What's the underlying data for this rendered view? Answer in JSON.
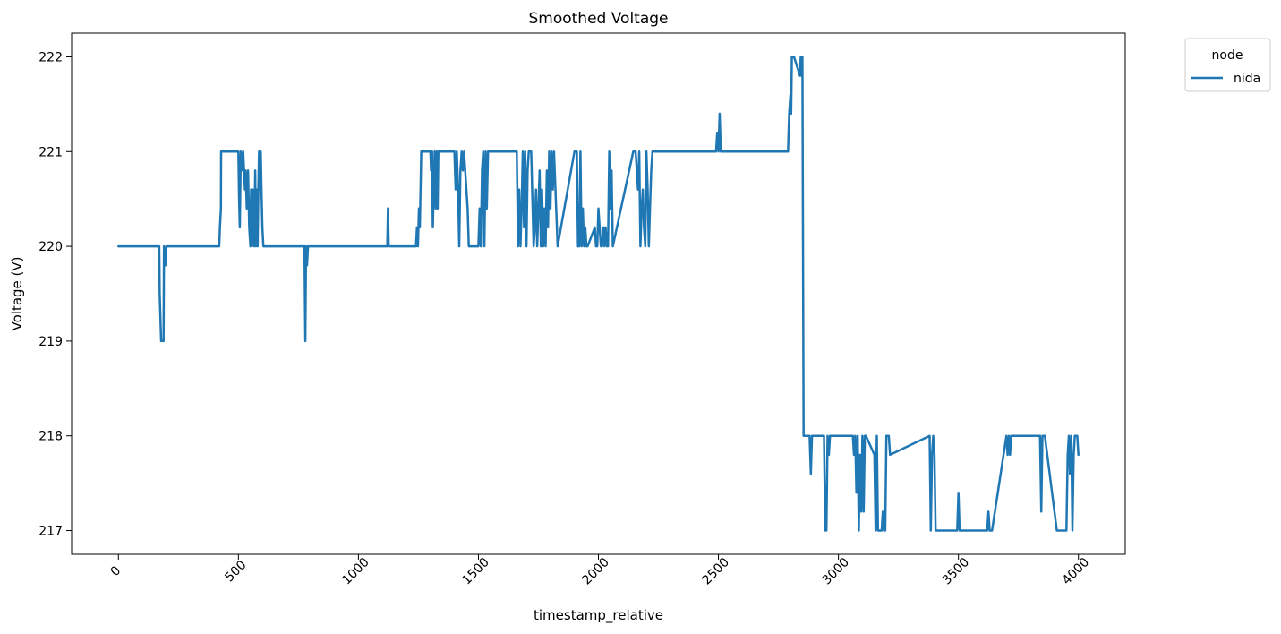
{
  "chart_data": {
    "type": "line",
    "title": "Smoothed Voltage",
    "xlabel": "timestamp_relative",
    "ylabel": "Voltage (V)",
    "xlim": [
      -195,
      4195
    ],
    "ylim": [
      216.75,
      222.25
    ],
    "xticks": [
      0,
      500,
      1000,
      1500,
      2000,
      2500,
      3000,
      3500,
      4000
    ],
    "xtick_labels": [
      "0",
      "500",
      "1000",
      "1500",
      "2000",
      "2500",
      "3000",
      "3500",
      "4000"
    ],
    "yticks": [
      217,
      218,
      219,
      220,
      221,
      222
    ],
    "ytick_labels": [
      "217",
      "218",
      "219",
      "220",
      "221",
      "222"
    ],
    "grid": false,
    "legend": {
      "title": "node",
      "placement": "upper-right-outside"
    },
    "series": [
      {
        "name": "nida",
        "color": "#1f77b4",
        "x": [
          0,
          170,
          172,
          178,
          188,
          190,
          196,
          200,
          420,
          423,
          427,
          428,
          440,
          500,
          503,
          506,
          510,
          513,
          520,
          527,
          530,
          535,
          540,
          545,
          550,
          553,
          556,
          560,
          563,
          566,
          570,
          573,
          576,
          580,
          583,
          586,
          590,
          593,
          596,
          600,
          604,
          610,
          770,
          775,
          779,
          782,
          786,
          790,
          795,
          1120,
          1123,
          1126,
          1130,
          1240,
          1244,
          1248,
          1252,
          1256,
          1262,
          1268,
          1300,
          1303,
          1307,
          1310,
          1314,
          1318,
          1322,
          1326,
          1330,
          1333,
          1337,
          1400,
          1405,
          1410,
          1415,
          1420,
          1425,
          1430,
          1435,
          1440,
          1445,
          1450,
          1455,
          1460,
          1500,
          1505,
          1510,
          1515,
          1520,
          1525,
          1530,
          1535,
          1540,
          1545,
          1660,
          1665,
          1670,
          1675,
          1680,
          1685,
          1690,
          1695,
          1700,
          1705,
          1710,
          1715,
          1720,
          1730,
          1735,
          1740,
          1745,
          1750,
          1755,
          1760,
          1765,
          1770,
          1775,
          1780,
          1785,
          1790,
          1795,
          1800,
          1805,
          1810,
          1815,
          1830,
          1900,
          1905,
          1910,
          1915,
          1920,
          1925,
          1930,
          1935,
          1940,
          1945,
          1950,
          1955,
          1985,
          1990,
          1995,
          2000,
          2010,
          2015,
          2020,
          2025,
          2030,
          2035,
          2040,
          2045,
          2050,
          2055,
          2060,
          2145,
          2150,
          2155,
          2160,
          2165,
          2170,
          2175,
          2180,
          2185,
          2190,
          2195,
          2200,
          2205,
          2210,
          2215,
          2220,
          2225,
          2490,
          2495,
          2500,
          2505,
          2510,
          2515,
          2790,
          2795,
          2800,
          2803,
          2806,
          2810,
          2815,
          2840,
          2843,
          2846,
          2850,
          2855,
          2870,
          2880,
          2885,
          2890,
          2895,
          2940,
          2945,
          2950,
          2955,
          2960,
          2965,
          3060,
          3065,
          3070,
          3075,
          3080,
          3085,
          3090,
          3095,
          3100,
          3105,
          3110,
          3115,
          3150,
          3155,
          3160,
          3165,
          3180,
          3185,
          3190,
          3195,
          3200,
          3205,
          3210,
          3215,
          3380,
          3385,
          3390,
          3395,
          3400,
          3405,
          3410,
          3415,
          3420,
          3425,
          3495,
          3500,
          3505,
          3510,
          3515,
          3620,
          3625,
          3630,
          3635,
          3640,
          3700,
          3705,
          3710,
          3715,
          3720,
          3725,
          3840,
          3845,
          3850,
          3855,
          3860,
          3910,
          3915,
          3950,
          3955,
          3960,
          3965,
          3970,
          3975,
          3980,
          3985,
          3990,
          3995,
          4000
        ],
        "y": [
          220.0,
          220.0,
          219.5,
          219.0,
          219.0,
          220.0,
          219.8,
          220.0,
          220.0,
          220.2,
          220.4,
          221.0,
          221.0,
          221.0,
          220.5,
          220.2,
          221.0,
          220.8,
          221.0,
          220.6,
          220.8,
          220.4,
          220.8,
          220.2,
          220.0,
          220.6,
          220.0,
          220.6,
          220.2,
          220.0,
          220.8,
          220.0,
          220.6,
          220.0,
          220.6,
          221.0,
          220.6,
          221.0,
          220.6,
          220.2,
          220.0,
          220.0,
          220.0,
          220.0,
          219.0,
          220.0,
          219.8,
          220.0,
          220.0,
          220.0,
          220.4,
          220.0,
          220.0,
          220.0,
          220.2,
          220.0,
          220.4,
          220.2,
          221.0,
          221.0,
          221.0,
          220.8,
          221.0,
          220.2,
          220.6,
          221.0,
          220.4,
          221.0,
          220.4,
          221.0,
          221.0,
          221.0,
          220.6,
          221.0,
          220.6,
          220.0,
          220.8,
          221.0,
          220.8,
          221.0,
          220.8,
          220.6,
          220.4,
          220.0,
          220.0,
          220.4,
          220.0,
          220.8,
          221.0,
          220.0,
          221.0,
          220.4,
          221.0,
          221.0,
          221.0,
          220.0,
          220.6,
          220.0,
          220.4,
          221.0,
          220.2,
          221.0,
          220.0,
          220.8,
          221.0,
          221.0,
          221.0,
          220.0,
          220.2,
          220.6,
          220.0,
          220.4,
          220.8,
          220.0,
          220.6,
          220.0,
          220.4,
          220.0,
          220.8,
          220.2,
          221.0,
          220.4,
          221.0,
          220.6,
          221.0,
          220.0,
          221.0,
          221.0,
          221.0,
          220.0,
          220.0,
          221.0,
          220.0,
          220.4,
          220.0,
          220.2,
          220.0,
          220.0,
          220.2,
          220.0,
          220.0,
          220.4,
          220.0,
          220.0,
          220.2,
          220.0,
          220.2,
          220.0,
          220.0,
          221.0,
          220.4,
          220.8,
          220.0,
          221.0,
          221.0,
          221.0,
          220.8,
          220.6,
          221.0,
          220.0,
          220.4,
          220.6,
          220.2,
          220.0,
          221.0,
          220.6,
          220.0,
          220.4,
          220.8,
          221.0,
          221.0,
          221.2,
          221.0,
          221.4,
          221.0,
          221.0,
          221.0,
          221.4,
          221.6,
          221.4,
          222.0,
          222.0,
          222.0,
          221.8,
          222.0,
          221.8,
          222.0,
          218.0,
          218.0,
          218.0,
          217.6,
          218.0,
          218.0,
          218.0,
          217.0,
          217.0,
          218.0,
          217.8,
          218.0,
          218.0,
          217.8,
          218.0,
          217.4,
          218.0,
          217.0,
          217.8,
          217.2,
          218.0,
          217.2,
          218.0,
          218.0,
          217.8,
          217.0,
          218.0,
          217.0,
          217.0,
          217.2,
          217.0,
          217.0,
          218.0,
          218.0,
          218.0,
          217.8,
          218.0,
          217.0,
          217.8,
          218.0,
          217.8,
          217.0,
          217.0,
          217.0,
          217.0,
          217.0,
          217.0,
          217.4,
          217.0,
          217.0,
          217.0,
          217.0,
          217.2,
          217.0,
          217.0,
          217.0,
          218.0,
          217.8,
          218.0,
          217.8,
          218.0,
          218.0,
          218.0,
          217.2,
          218.0,
          218.0,
          218.0,
          217.0,
          217.0,
          217.0,
          217.8,
          218.0,
          217.6,
          218.0,
          217.0,
          217.8,
          218.0,
          218.0,
          218.0,
          217.8
        ]
      }
    ]
  }
}
